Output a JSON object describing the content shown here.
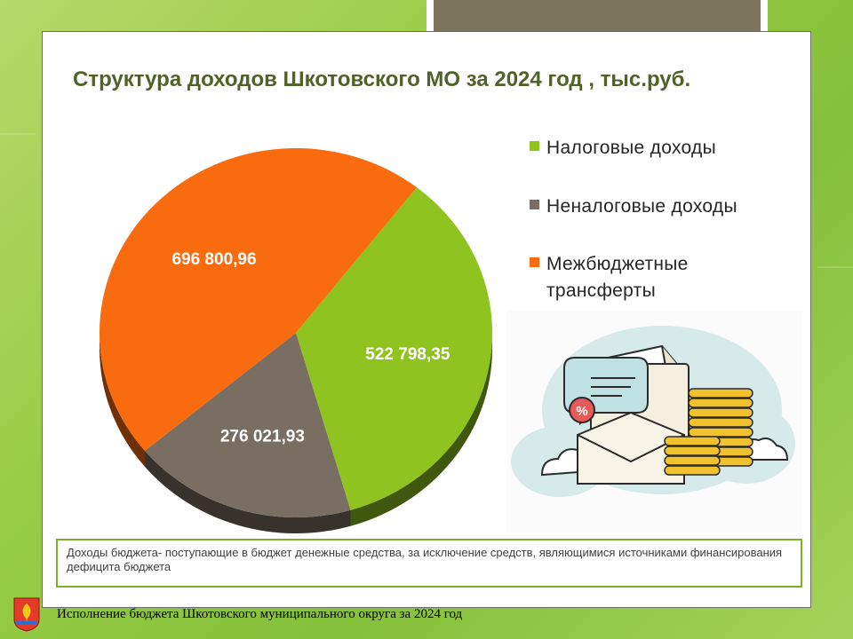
{
  "slide": {
    "title": "Структура доходов Шкотовского МО за 2024 год , тыс.руб.",
    "note": "Доходы бюджета- поступающие в бюджет денежные средства, за исключение средств, являющимися источниками финансирования дефицита бюджета",
    "footer": "Исполнение бюджета Шкотовского муниципального округа за 2024 год"
  },
  "colors": {
    "series": [
      "#8fc31f",
      "#7a6e62",
      "#f96b0f"
    ],
    "title": "#4f6228",
    "note_border": "#7fae2a"
  },
  "chart_data": {
    "type": "pie",
    "title": "Структура доходов Шкотовского МО за 2024 год , тыс.руб.",
    "categories": [
      "Налоговые доходы",
      "Неналоговые доходы",
      "Межбюджетные трансферты"
    ],
    "values": [
      522798.35,
      276021.93,
      696800.96
    ],
    "labels": [
      "522 798,35",
      "276 021,93",
      "696 800,96"
    ],
    "legend_position": "right",
    "style": "3d"
  },
  "illustration": {
    "icon": "budget-document-coins-illustration",
    "badge_text": "%"
  }
}
